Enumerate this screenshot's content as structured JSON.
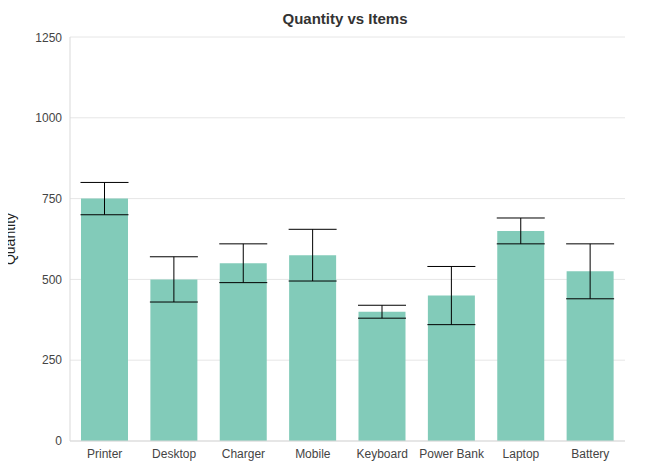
{
  "chart_data": {
    "type": "bar",
    "title": "Quantity vs Items",
    "y_label": "Quantity",
    "categories": [
      "Printer",
      "Desktop",
      "Charger",
      "Mobile",
      "Keyboard",
      "Power Bank",
      "Laptop",
      "Battery"
    ],
    "values": [
      750,
      500,
      550,
      575,
      400,
      450,
      650,
      525
    ],
    "errors": [
      50,
      70,
      60,
      80,
      20,
      90,
      40,
      85
    ],
    "color": "#82cbb9",
    "ylim": [
      0,
      1250
    ],
    "yticks": [
      0,
      250,
      500,
      750,
      1000,
      1250
    ],
    "grid": true
  }
}
